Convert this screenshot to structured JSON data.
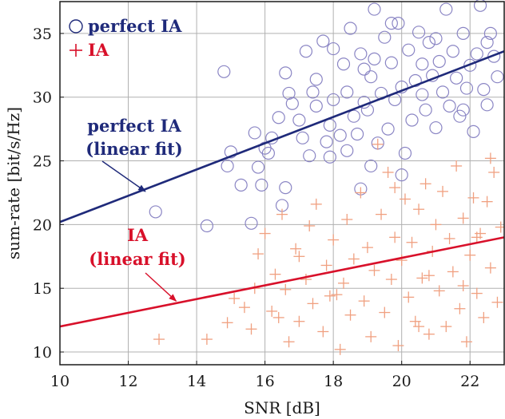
{
  "chart_data": {
    "type": "scatter",
    "title": "",
    "xlabel": "SNR [dB]",
    "ylabel": "sum-rate [bit/s/Hz]",
    "xlim": [
      10,
      23
    ],
    "ylim": [
      9,
      37.5
    ],
    "xticks": [
      10,
      12,
      14,
      16,
      18,
      20,
      22
    ],
    "yticks": [
      10,
      15,
      20,
      25,
      30,
      35
    ],
    "grid": true,
    "legend_position": "top-left",
    "series": [
      {
        "name": "perfect IA",
        "marker": "circle",
        "color": "#8a85c4",
        "legend_color": "#1f2a7a",
        "points": [
          [
            12.8,
            21.0
          ],
          [
            14.3,
            19.9
          ],
          [
            14.8,
            32.0
          ],
          [
            14.9,
            24.6
          ],
          [
            15.0,
            25.7
          ],
          [
            15.3,
            23.1
          ],
          [
            15.6,
            20.1
          ],
          [
            15.7,
            27.2
          ],
          [
            15.8,
            24.5
          ],
          [
            15.9,
            23.1
          ],
          [
            16.0,
            26.0
          ],
          [
            16.1,
            25.6
          ],
          [
            16.2,
            26.8
          ],
          [
            16.4,
            28.4
          ],
          [
            16.5,
            21.5
          ],
          [
            16.6,
            31.9
          ],
          [
            16.6,
            22.9
          ],
          [
            16.7,
            30.3
          ],
          [
            16.8,
            29.5
          ],
          [
            17.0,
            28.2
          ],
          [
            17.1,
            26.8
          ],
          [
            17.2,
            33.6
          ],
          [
            17.3,
            25.4
          ],
          [
            17.5,
            29.3
          ],
          [
            17.5,
            31.4
          ],
          [
            17.7,
            34.4
          ],
          [
            17.8,
            26.5
          ],
          [
            17.9,
            25.3
          ],
          [
            17.9,
            27.8
          ],
          [
            18.0,
            29.8
          ],
          [
            18.0,
            33.8
          ],
          [
            18.2,
            27.0
          ],
          [
            18.3,
            32.6
          ],
          [
            18.4,
            30.4
          ],
          [
            18.5,
            35.4
          ],
          [
            18.6,
            28.5
          ],
          [
            18.7,
            27.1
          ],
          [
            18.8,
            33.4
          ],
          [
            18.8,
            22.8
          ],
          [
            18.9,
            32.2
          ],
          [
            19.0,
            29.0
          ],
          [
            19.1,
            31.6
          ],
          [
            19.1,
            24.6
          ],
          [
            19.2,
            33.0
          ],
          [
            19.2,
            36.9
          ],
          [
            19.4,
            30.3
          ],
          [
            19.5,
            34.7
          ],
          [
            19.6,
            27.5
          ],
          [
            19.7,
            32.7
          ],
          [
            19.8,
            29.8
          ],
          [
            19.9,
            35.8
          ],
          [
            20.0,
            30.8
          ],
          [
            20.0,
            23.9
          ],
          [
            20.2,
            33.7
          ],
          [
            20.3,
            28.2
          ],
          [
            20.4,
            31.3
          ],
          [
            20.5,
            35.1
          ],
          [
            20.6,
            30.2
          ],
          [
            20.7,
            29.0
          ],
          [
            20.8,
            34.3
          ],
          [
            20.9,
            31.7
          ],
          [
            21.0,
            27.6
          ],
          [
            21.1,
            32.8
          ],
          [
            21.2,
            30.4
          ],
          [
            21.3,
            36.9
          ],
          [
            21.4,
            29.3
          ],
          [
            21.5,
            33.6
          ],
          [
            21.6,
            31.5
          ],
          [
            21.7,
            28.5
          ],
          [
            21.8,
            35.0
          ],
          [
            21.9,
            30.7
          ],
          [
            22.0,
            32.5
          ],
          [
            22.1,
            27.3
          ],
          [
            22.2,
            33.4
          ],
          [
            22.3,
            37.2
          ],
          [
            22.4,
            30.6
          ],
          [
            22.5,
            29.4
          ],
          [
            22.6,
            35.0
          ],
          [
            22.7,
            33.2
          ],
          [
            22.8,
            31.6
          ],
          [
            18.4,
            25.8
          ],
          [
            19.3,
            26.4
          ],
          [
            20.1,
            25.6
          ],
          [
            21.0,
            34.6
          ],
          [
            19.7,
            35.8
          ],
          [
            17.4,
            30.4
          ],
          [
            18.9,
            29.6
          ],
          [
            20.6,
            32.6
          ],
          [
            21.8,
            29.0
          ],
          [
            22.5,
            34.3
          ]
        ]
      },
      {
        "name": "IA",
        "marker": "plus",
        "color": "#f0a080",
        "legend_color": "#d8102a",
        "points": [
          [
            12.9,
            11.0
          ],
          [
            14.3,
            11.0
          ],
          [
            14.9,
            12.3
          ],
          [
            15.1,
            14.2
          ],
          [
            15.4,
            13.5
          ],
          [
            15.6,
            11.8
          ],
          [
            15.7,
            15.0
          ],
          [
            15.8,
            17.7
          ],
          [
            16.0,
            19.3
          ],
          [
            16.2,
            13.2
          ],
          [
            16.3,
            16.1
          ],
          [
            16.5,
            20.8
          ],
          [
            16.6,
            14.9
          ],
          [
            16.7,
            10.8
          ],
          [
            16.9,
            18.1
          ],
          [
            17.0,
            12.4
          ],
          [
            17.2,
            15.7
          ],
          [
            17.3,
            19.9
          ],
          [
            17.4,
            13.8
          ],
          [
            17.5,
            21.6
          ],
          [
            17.7,
            11.6
          ],
          [
            17.8,
            16.8
          ],
          [
            17.9,
            14.4
          ],
          [
            18.0,
            18.8
          ],
          [
            18.2,
            10.2
          ],
          [
            18.3,
            15.4
          ],
          [
            18.4,
            20.4
          ],
          [
            18.5,
            12.9
          ],
          [
            18.6,
            17.3
          ],
          [
            18.8,
            22.5
          ],
          [
            18.9,
            14.0
          ],
          [
            19.0,
            18.2
          ],
          [
            19.1,
            11.2
          ],
          [
            19.2,
            16.4
          ],
          [
            19.4,
            20.8
          ],
          [
            19.5,
            13.1
          ],
          [
            19.6,
            24.1
          ],
          [
            19.7,
            15.7
          ],
          [
            19.8,
            19.0
          ],
          [
            19.9,
            10.5
          ],
          [
            20.0,
            17.2
          ],
          [
            20.1,
            22.0
          ],
          [
            20.2,
            14.3
          ],
          [
            20.3,
            18.6
          ],
          [
            20.4,
            12.4
          ],
          [
            20.5,
            21.2
          ],
          [
            20.6,
            15.8
          ],
          [
            20.7,
            23.2
          ],
          [
            20.8,
            11.4
          ],
          [
            20.9,
            17.9
          ],
          [
            21.0,
            20.0
          ],
          [
            21.1,
            14.8
          ],
          [
            21.2,
            22.6
          ],
          [
            21.3,
            12.0
          ],
          [
            21.4,
            18.9
          ],
          [
            21.5,
            16.3
          ],
          [
            21.6,
            24.6
          ],
          [
            21.7,
            13.4
          ],
          [
            21.8,
            20.5
          ],
          [
            21.9,
            10.8
          ],
          [
            22.0,
            17.6
          ],
          [
            22.1,
            22.1
          ],
          [
            22.2,
            14.6
          ],
          [
            22.3,
            19.3
          ],
          [
            22.4,
            12.7
          ],
          [
            22.5,
            21.8
          ],
          [
            22.6,
            16.6
          ],
          [
            22.7,
            24.1
          ],
          [
            22.8,
            13.9
          ],
          [
            22.9,
            19.8
          ],
          [
            19.3,
            26.3
          ],
          [
            22.6,
            25.2
          ],
          [
            18.1,
            14.5
          ],
          [
            20.5,
            12.0
          ],
          [
            21.8,
            15.2
          ],
          [
            17.0,
            17.5
          ],
          [
            19.8,
            22.9
          ],
          [
            22.2,
            19.0
          ],
          [
            16.4,
            12.7
          ],
          [
            20.8,
            16.0
          ]
        ]
      }
    ],
    "fits": [
      {
        "series": "perfect IA",
        "color": "#1f2a7a",
        "x": [
          10,
          23
        ],
        "y": [
          20.2,
          33.6
        ]
      },
      {
        "series": "IA",
        "color": "#d8102a",
        "x": [
          10,
          23
        ],
        "y": [
          12.0,
          19.0
        ]
      }
    ],
    "legend": [
      {
        "symbol": "○",
        "label": "perfect IA",
        "color": "#1f2a7a"
      },
      {
        "symbol": "+",
        "label": "IA",
        "color": "#d8102a"
      }
    ],
    "annotations": [
      {
        "lines": [
          "perfect IA",
          "(linear fit)"
        ],
        "color": "#1f2a7a",
        "arrow_to": [
          12.5,
          22.6
        ]
      },
      {
        "lines": [
          "IA",
          "(linear fit)"
        ],
        "color": "#d8102a",
        "arrow_to": [
          13.4,
          14.0
        ]
      }
    ]
  }
}
